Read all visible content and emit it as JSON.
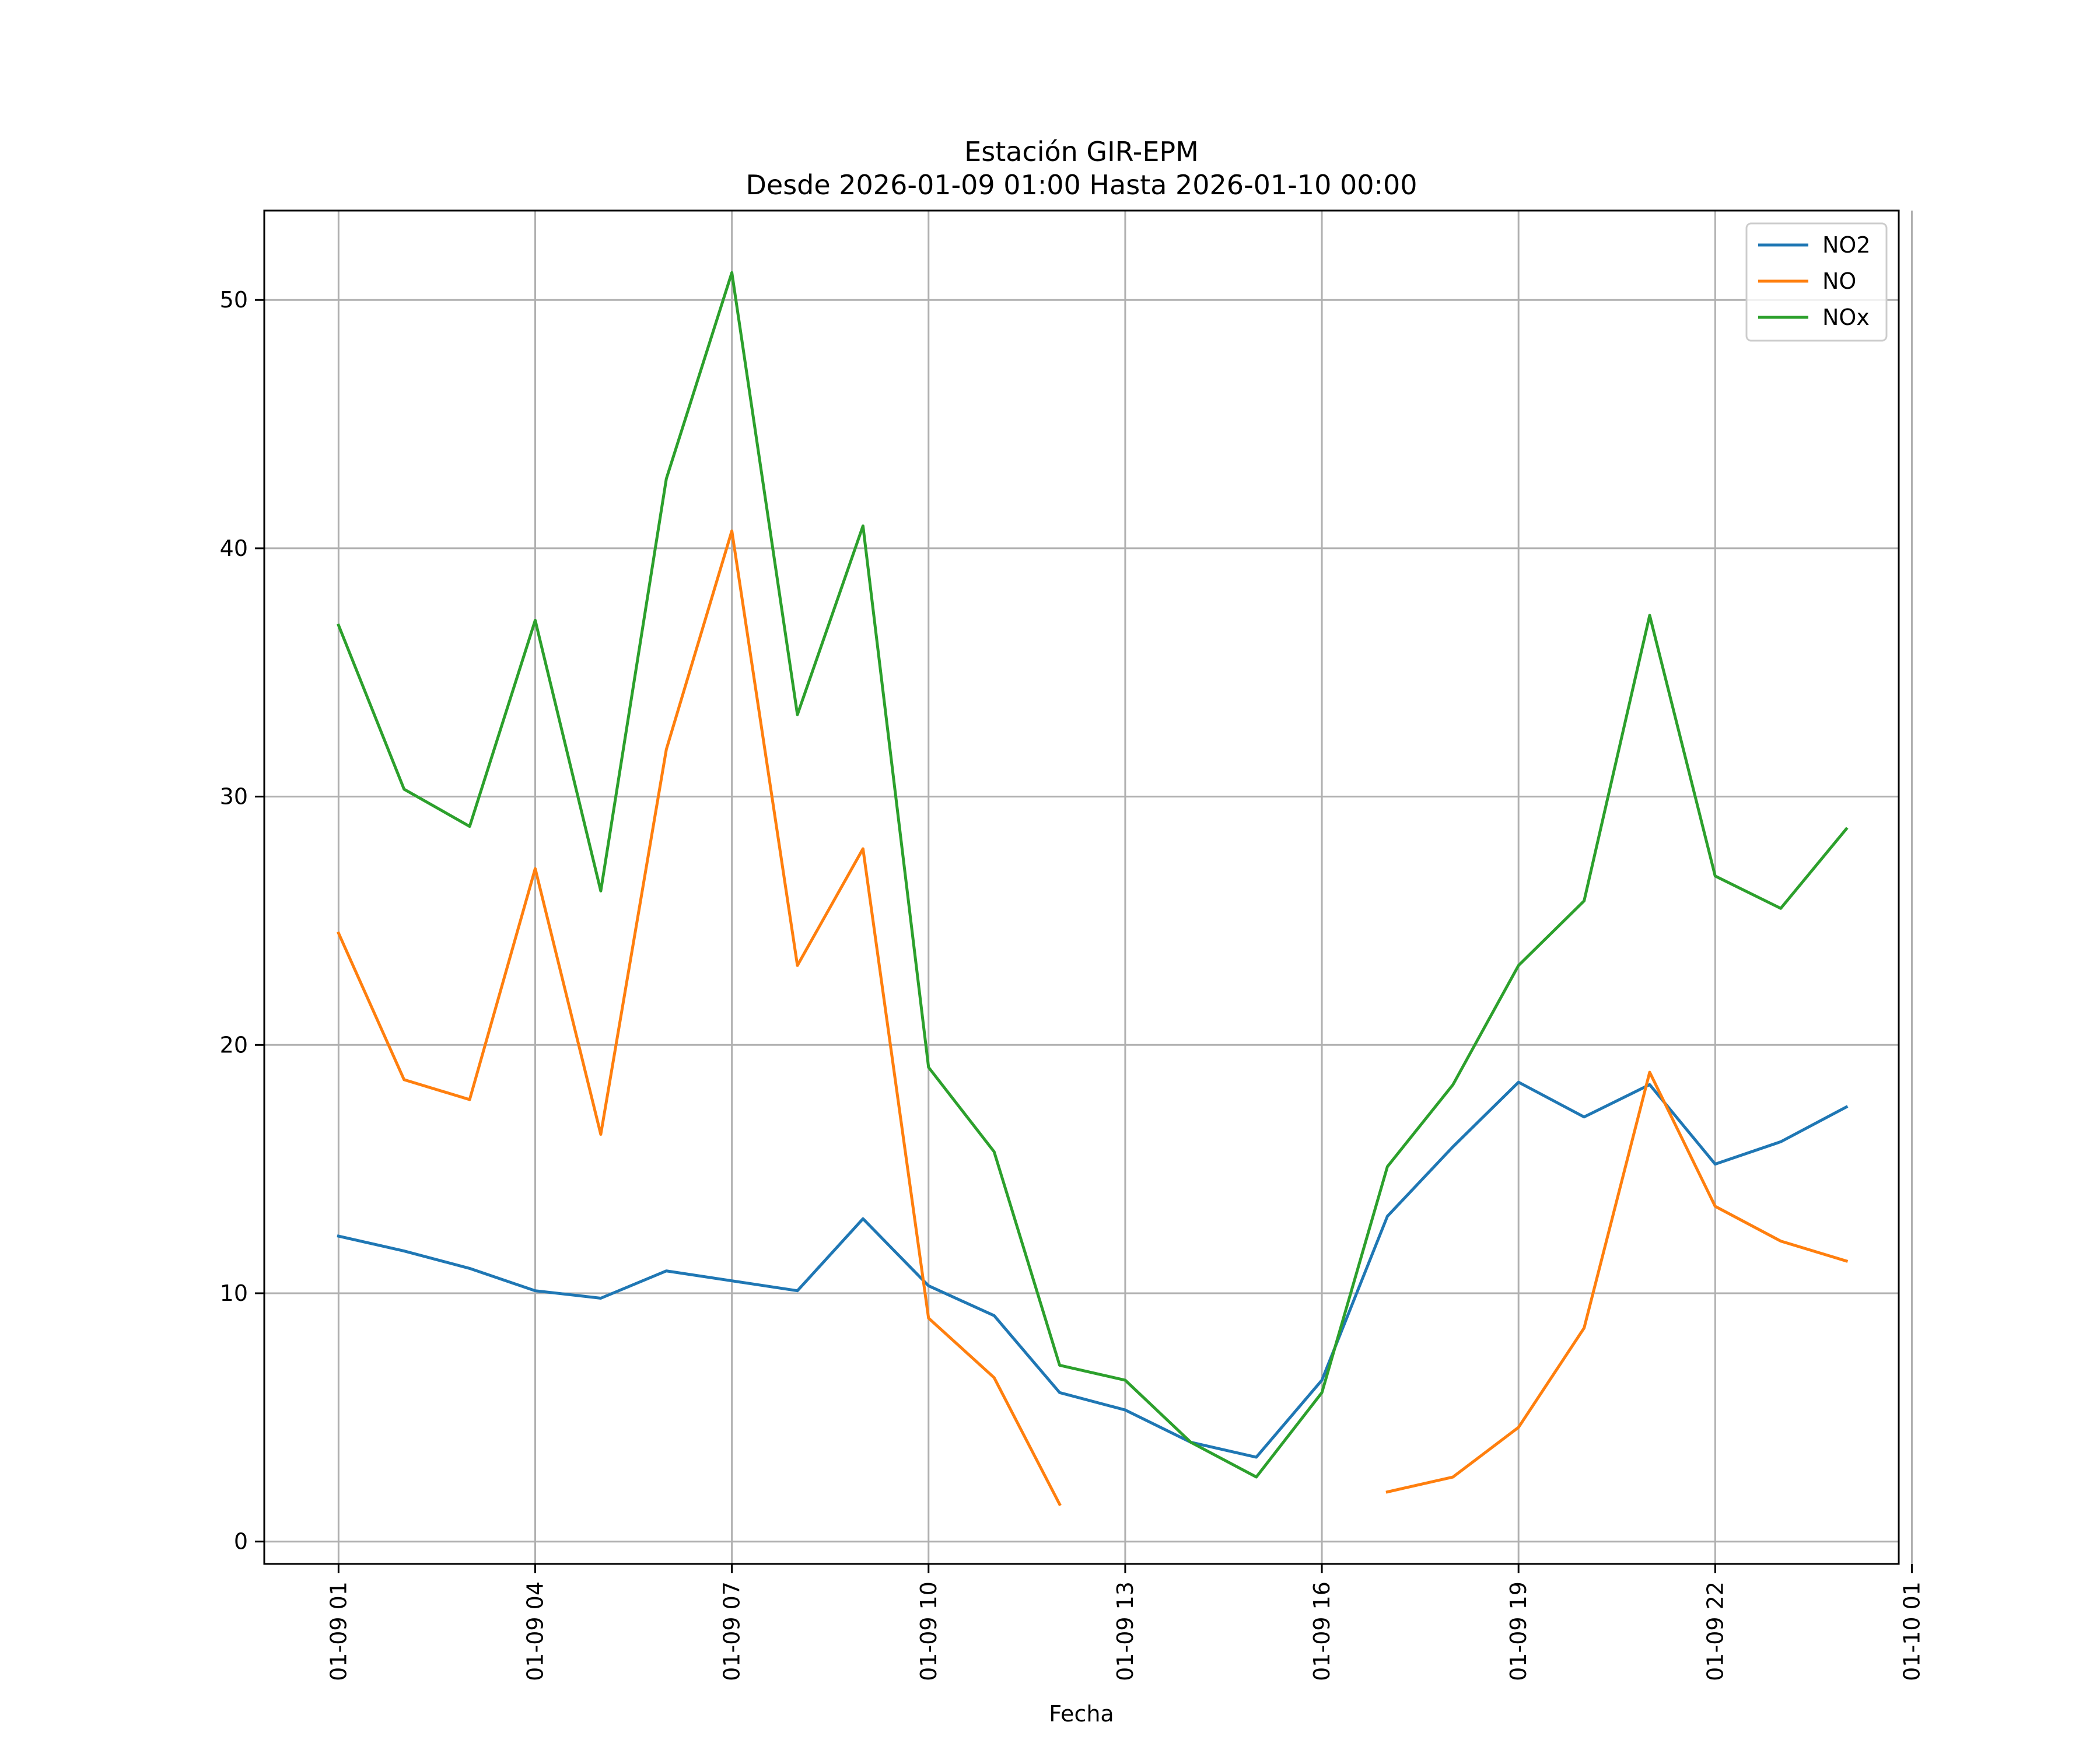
{
  "chart_data": {
    "type": "line",
    "title": "Estación GIR-EPM",
    "subtitle": "Desde 2026-01-09 01:00 Hasta 2026-01-10 00:00",
    "xlabel": "Fecha",
    "ylabel": "",
    "x": [
      "2026-01-09 01:00",
      "2026-01-09 02:00",
      "2026-01-09 03:00",
      "2026-01-09 04:00",
      "2026-01-09 05:00",
      "2026-01-09 06:00",
      "2026-01-09 07:00",
      "2026-01-09 08:00",
      "2026-01-09 09:00",
      "2026-01-09 10:00",
      "2026-01-09 11:00",
      "2026-01-09 12:00",
      "2026-01-09 13:00",
      "2026-01-09 14:00",
      "2026-01-09 15:00",
      "2026-01-09 16:00",
      "2026-01-09 17:00",
      "2026-01-09 18:00",
      "2026-01-09 19:00",
      "2026-01-09 20:00",
      "2026-01-09 21:00",
      "2026-01-09 22:00",
      "2026-01-09 23:00",
      "2026-01-10 00:00"
    ],
    "xlim": [
      "2026-01-08 23:52",
      "2026-01-10 00:48"
    ],
    "ylim": [
      -0.9,
      53.6
    ],
    "x_ticks": [
      "01-09 01",
      "01-09 04",
      "01-09 07",
      "01-09 10",
      "01-09 13",
      "01-09 16",
      "01-09 19",
      "01-09 22",
      "01-10 01"
    ],
    "y_ticks": [
      0,
      10,
      20,
      30,
      40,
      50
    ],
    "grid": true,
    "legend_position": "top-right",
    "series": [
      {
        "name": "NO2",
        "color": "#1f77b4",
        "values": [
          12.3,
          11.7,
          11.0,
          10.1,
          9.8,
          10.9,
          10.5,
          10.1,
          13.0,
          10.3,
          9.1,
          6.0,
          5.3,
          4.0,
          3.4,
          6.5,
          13.1,
          15.9,
          18.5,
          17.1,
          18.4,
          15.2,
          16.1,
          17.5
        ]
      },
      {
        "name": "NO",
        "color": "#ff7f0e",
        "values": [
          24.5,
          18.6,
          17.8,
          27.1,
          16.4,
          31.9,
          40.7,
          23.2,
          27.9,
          9.0,
          6.6,
          1.5,
          null,
          null,
          null,
          null,
          2.0,
          2.6,
          4.6,
          8.6,
          18.9,
          13.5,
          12.1,
          11.3
        ]
      },
      {
        "name": "NOx",
        "color": "#2ca02c",
        "values": [
          36.9,
          30.3,
          28.8,
          37.1,
          26.2,
          42.8,
          51.1,
          33.3,
          40.9,
          19.1,
          15.7,
          7.1,
          6.5,
          4.0,
          2.6,
          6.0,
          15.1,
          18.4,
          23.2,
          25.8,
          37.3,
          26.8,
          25.5,
          28.7
        ]
      }
    ]
  }
}
